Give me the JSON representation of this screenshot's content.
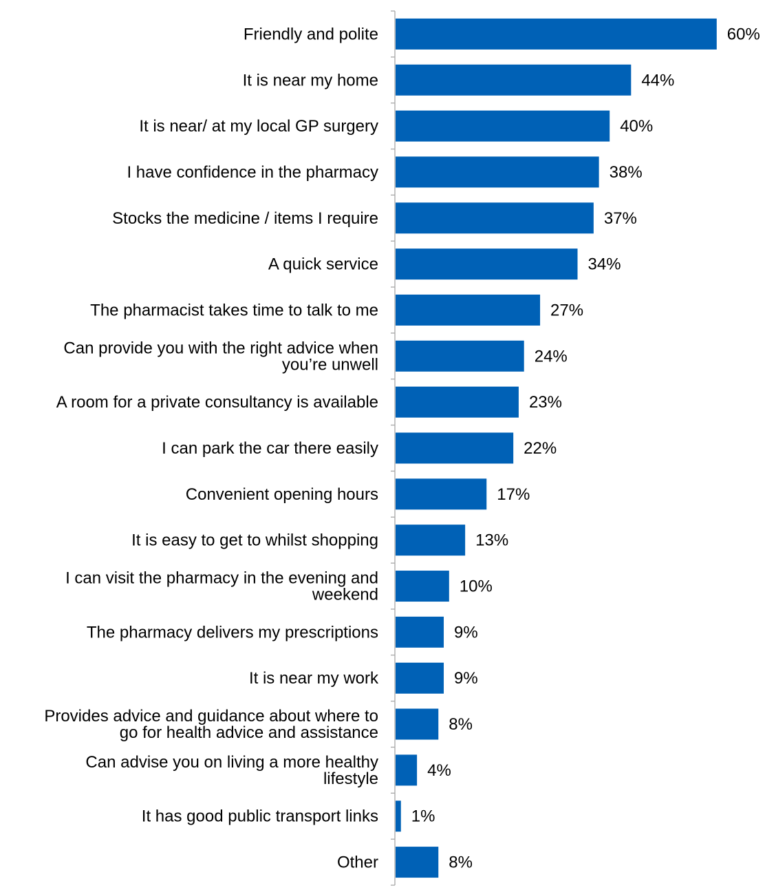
{
  "chart_data": {
    "type": "bar",
    "orientation": "horizontal",
    "bar_color": "#0061B6",
    "value_suffix": "%",
    "categories": [
      [
        "Friendly and polite"
      ],
      [
        "It is near my home"
      ],
      [
        "It is near/ at my local GP surgery"
      ],
      [
        "I have confidence in the pharmacy"
      ],
      [
        "Stocks the medicine / items I require"
      ],
      [
        "A quick service"
      ],
      [
        "The pharmacist takes time to talk to me"
      ],
      [
        "Can provide you with the right advice when",
        "you’re unwell"
      ],
      [
        "A room for a private consultancy is available"
      ],
      [
        "I can park the car there easily"
      ],
      [
        "Convenient opening hours"
      ],
      [
        "It is easy to get to whilst shopping"
      ],
      [
        "I can visit the pharmacy in the evening and",
        "weekend"
      ],
      [
        "The pharmacy delivers my prescriptions"
      ],
      [
        "It is near my work"
      ],
      [
        "Provides advice and guidance about where to",
        "go for health advice and assistance"
      ],
      [
        "Can advise you on living a more healthy",
        "lifestyle"
      ],
      [
        "It has good public transport links"
      ],
      [
        "Other"
      ]
    ],
    "values": [
      60,
      44,
      40,
      38,
      37,
      34,
      27,
      24,
      23,
      22,
      17,
      13,
      10,
      9,
      9,
      8,
      4,
      1,
      8
    ],
    "labels": [
      "60%",
      "44%",
      "40%",
      "38%",
      "37%",
      "34%",
      "27%",
      "24%",
      "23%",
      "22%",
      "17%",
      "13%",
      "10%",
      "9%",
      "9%",
      "8%",
      "4%",
      "1%",
      "8%"
    ],
    "xlim": [
      0,
      60
    ],
    "grid": false,
    "legend": "none"
  }
}
